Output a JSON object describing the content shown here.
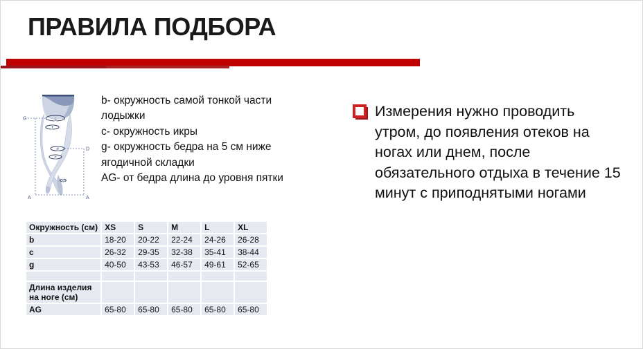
{
  "slide": {
    "title": "ПРАВИЛА ПОДБОРА",
    "accent_red": "#c00000",
    "accent_dark_red": "#9a161a"
  },
  "legend": {
    "lines": [
      "b- окружность самой тонкой части",
      "лодыжки",
      "c- окружность икры",
      "g- окружность бедра на 5 см ниже",
      "ягодичной складки",
      "AG- от бедра длина до уровня пятки"
    ]
  },
  "note": {
    "lines": [
      "Измерения нужно проводить",
      "утром, до появления отеков на",
      "ногах или днем, после",
      "обязательного отдыха в течение 15",
      "минут с приподнятыми ногами"
    ]
  },
  "diagram": {
    "axis_g": "G",
    "axis_d": "D",
    "axis_a_left": "A",
    "axis_a_right": "A",
    "ring_g": "g",
    "ring_f": "f",
    "ring_d": "d",
    "ring_c": "c",
    "ring_b": "b"
  },
  "table": {
    "header": [
      "Окружность (см)",
      "XS",
      "S",
      "M",
      "L",
      "XL"
    ],
    "rows": [
      {
        "type": "data",
        "label": "b",
        "values": [
          "18-20",
          "20-22",
          "22-24",
          "24-26",
          "26-28"
        ]
      },
      {
        "type": "data",
        "label": "c",
        "values": [
          "26-32",
          "29-35",
          "32-38",
          "35-41",
          "38-44"
        ]
      },
      {
        "type": "data",
        "label": "g",
        "values": [
          "40-50",
          "43-53",
          "46-57",
          "49-61",
          "52-65"
        ]
      },
      {
        "type": "spacer",
        "label": "",
        "values": [
          "",
          "",
          "",
          "",
          ""
        ]
      },
      {
        "type": "tall",
        "label": "Длина изделия на ноге (см)",
        "values": [
          "",
          "",
          "",
          "",
          ""
        ]
      },
      {
        "type": "data-last",
        "label": "AG",
        "values": [
          "65-80",
          "65-80",
          "65-80",
          "65-80",
          "65-80"
        ]
      }
    ]
  }
}
